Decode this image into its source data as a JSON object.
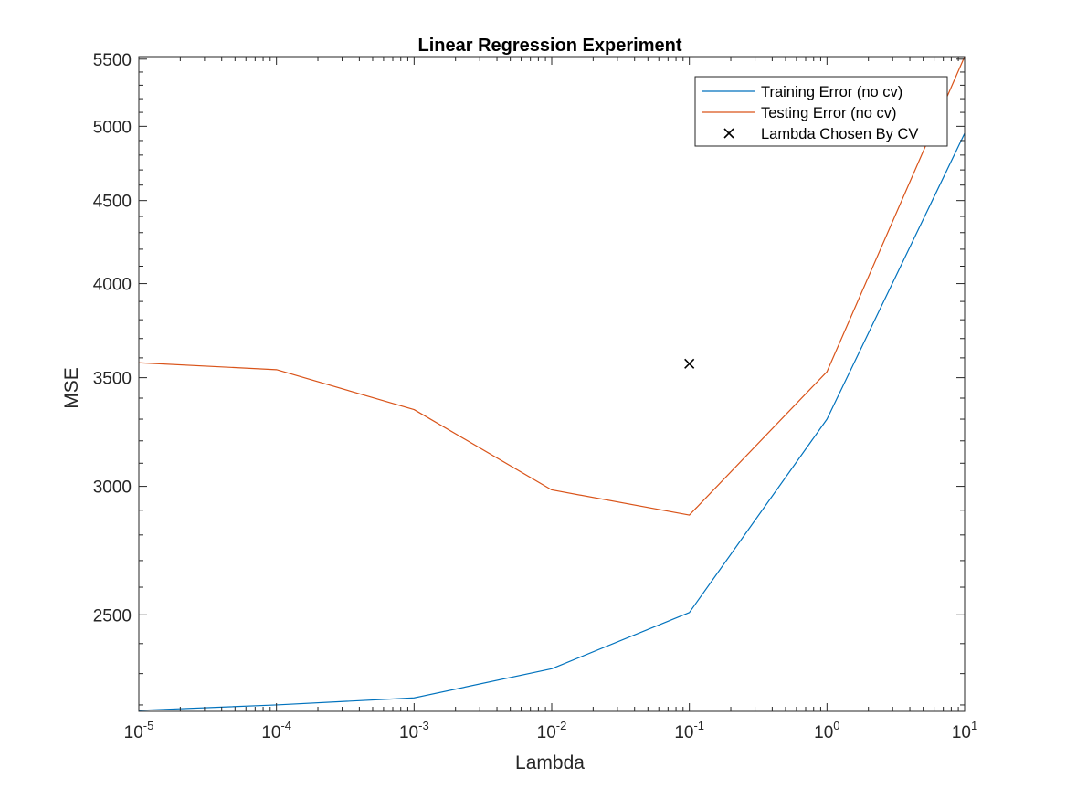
{
  "chart_data": {
    "type": "line",
    "title": "Linear Regression Experiment",
    "xlabel": "Lambda",
    "ylabel": "MSE",
    "xscale": "log",
    "yscale": "log",
    "xlim": [
      1e-05,
      10
    ],
    "ylim": [
      2180,
      5520
    ],
    "x": [
      1e-05,
      0.0001,
      0.001,
      0.01,
      0.1,
      1,
      10
    ],
    "x_tick_labels": [
      {
        "value": 1e-05,
        "base": "10",
        "exponent": "-5"
      },
      {
        "value": 0.0001,
        "base": "10",
        "exponent": "-4"
      },
      {
        "value": 0.001,
        "base": "10",
        "exponent": "-3"
      },
      {
        "value": 0.01,
        "base": "10",
        "exponent": "-2"
      },
      {
        "value": 0.1,
        "base": "10",
        "exponent": "-1"
      },
      {
        "value": 1,
        "base": "10",
        "exponent": "0"
      },
      {
        "value": 10,
        "base": "10",
        "exponent": "1"
      }
    ],
    "y_ticks": [
      2500,
      3000,
      3500,
      4000,
      4500,
      5000,
      5500
    ],
    "y_tick_labels": [
      "2500",
      "3000",
      "3500",
      "4000",
      "4500",
      "5000",
      "5500"
    ],
    "series": [
      {
        "name": "Training Error (no cv)",
        "kind": "line",
        "color": "#0072BD",
        "x": [
          1e-05,
          0.0001,
          0.001,
          0.01,
          0.1,
          1,
          10
        ],
        "y": [
          2183,
          2200,
          2222,
          2316,
          2508,
          3300,
          4950
        ]
      },
      {
        "name": "Testing Error (no cv)",
        "kind": "line",
        "color": "#D95319",
        "x": [
          1e-05,
          0.0001,
          0.001,
          0.01,
          0.1,
          1,
          10
        ],
        "y": [
          3575,
          3540,
          3345,
          2985,
          2880,
          3530,
          5520
        ]
      },
      {
        "name": "Lambda Chosen By CV",
        "kind": "marker",
        "marker": "x",
        "color": "#000000",
        "x": [
          0.1
        ],
        "y": [
          3570
        ]
      }
    ],
    "grid": false,
    "legend_position": "top-right",
    "box": true
  }
}
